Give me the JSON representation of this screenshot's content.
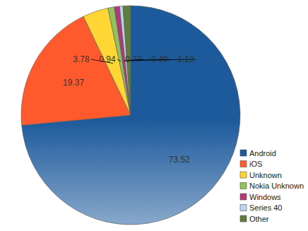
{
  "chart_data": {
    "type": "pie",
    "categories": [
      "Android",
      "iOS",
      "Unknown",
      "Nokia Unknown",
      "Windows",
      "Series 40",
      "Other"
    ],
    "values": [
      73.52,
      19.37,
      3.78,
      0.94,
      0.77,
      0.49,
      1.13
    ],
    "colors": [
      "#1d5a9c",
      "#ff5a2e",
      "#ffd633",
      "#92c25c",
      "#b03a78",
      "#bcd4ee",
      "#5f7d3c"
    ],
    "data_labels": true,
    "legend": "lower right"
  }
}
